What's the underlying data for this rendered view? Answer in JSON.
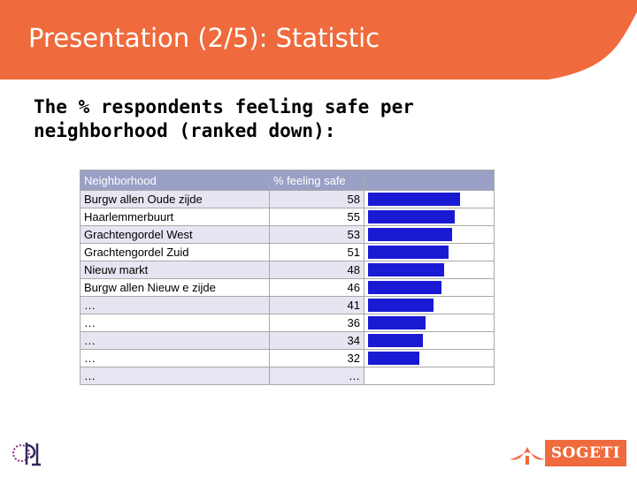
{
  "slide": {
    "title": "Presentation (2/5): Statistic",
    "subtitle": "The % respondents feeling safe per neighborhood (ranked down):"
  },
  "colors": {
    "header": "#ef6a3c",
    "bar": "#1a1ad4",
    "table_header": "#9aa0c6"
  },
  "table": {
    "columns": [
      "Neighborhood",
      "% feeling safe",
      ""
    ],
    "rows": [
      {
        "name": "Burgw allen Oude zijde",
        "value": "58",
        "pct": 58
      },
      {
        "name": "Haarlemmerbuurt",
        "value": "55",
        "pct": 55
      },
      {
        "name": "Grachtengordel West",
        "value": "53",
        "pct": 53
      },
      {
        "name": "Grachtengordel Zuid",
        "value": "51",
        "pct": 51
      },
      {
        "name": "Nieuw markt",
        "value": "48",
        "pct": 48
      },
      {
        "name": "Burgw allen Nieuw e zijde",
        "value": "46",
        "pct": 46
      },
      {
        "name": "…",
        "value": "41",
        "pct": 41
      },
      {
        "name": "…",
        "value": "36",
        "pct": 36
      },
      {
        "name": "…",
        "value": "34",
        "pct": 34
      },
      {
        "name": "…",
        "value": "32",
        "pct": 32
      },
      {
        "name": "…",
        "value": "…",
        "pct": null
      }
    ]
  },
  "logos": {
    "right_text": "SOGETI",
    "left_icon": "ipi-logo-icon",
    "right_icon": "sogeti-spade-icon"
  }
}
